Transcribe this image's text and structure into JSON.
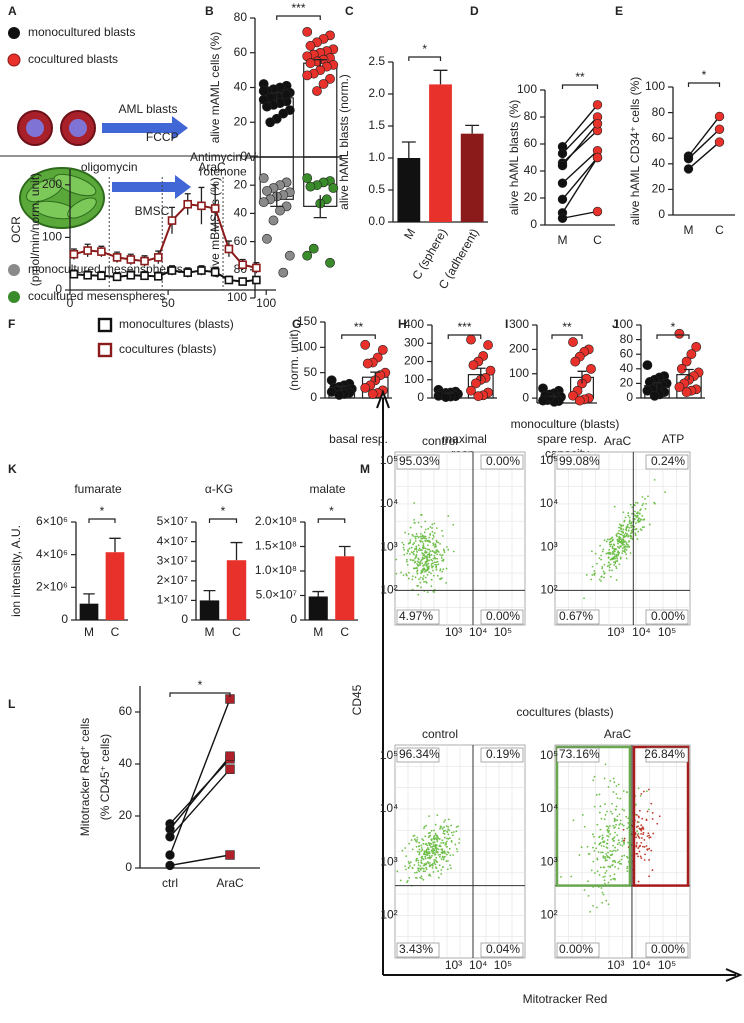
{
  "panel_labels": [
    "A",
    "B",
    "C",
    "D",
    "E",
    "F",
    "G",
    "H",
    "I",
    "J",
    "K",
    "L",
    "M"
  ],
  "panel_a": {
    "cell_label": "AML blasts",
    "treatment": "AraC",
    "stroma_label": "BMSC"
  },
  "chart_data": [
    {
      "type": "dotbar",
      "ylabel": "alive mAML cells (%)",
      "ylim": [
        0,
        80
      ],
      "yticks": [
        0,
        20,
        40,
        60,
        80
      ],
      "significance": "***",
      "series": [
        {
          "name": "monocultured blasts",
          "color": "#111111",
          "mean": 34,
          "error": 3,
          "points": [
            42,
            41,
            40,
            39,
            38,
            37,
            36,
            35,
            34,
            33,
            32,
            31,
            30,
            29,
            27,
            25,
            22,
            20,
            38,
            36
          ]
        },
        {
          "name": "cocultured blasts",
          "color": "#e8312a",
          "mean": 54,
          "error": 2,
          "points": [
            72,
            70,
            68,
            66,
            64,
            62,
            61,
            60,
            59,
            58,
            57,
            56,
            55,
            54,
            53,
            52,
            50,
            48,
            47,
            45,
            42,
            38
          ]
        }
      ]
    },
    {
      "type": "dotbar",
      "ylabel": "alive mBMSCs (%)",
      "ylim": [
        0,
        100
      ],
      "yticks": [
        20,
        40,
        60,
        80,
        100
      ],
      "inverted": true,
      "series": [
        {
          "name": "monocultured mesenspheres",
          "color": "#8a8a8a",
          "mean": 30,
          "error": 5,
          "points": [
            15,
            18,
            20,
            22,
            24,
            25,
            27,
            28,
            30,
            32,
            35,
            38,
            45,
            58,
            70,
            82
          ]
        },
        {
          "name": "cocultured mesenspheres",
          "color": "#3a8c2a",
          "mean": 35,
          "error": 8,
          "points": [
            15,
            17,
            18,
            20,
            21,
            22,
            30,
            33,
            65,
            70,
            75
          ]
        }
      ]
    },
    {
      "type": "bar",
      "ylabel": "alive hAML blasts (norm.)",
      "categories": [
        "M",
        "C (sphere)",
        "C (adherent)"
      ],
      "values": [
        1.0,
        2.15,
        1.38
      ],
      "errors": [
        0.25,
        0.22,
        0.13
      ],
      "colors": [
        "#111111",
        "#e8312a",
        "#8b1a1a"
      ],
      "ylim": [
        0,
        2.5
      ],
      "yticks": [
        {
          "value": 0,
          "label": "0.0"
        },
        0.5,
        {
          "value": 1,
          "label": "1.0"
        },
        1.5,
        {
          "value": 2,
          "label": "2.0"
        },
        2.5
      ],
      "significance": "*"
    },
    {
      "type": "paired",
      "ylabel": "alive hAML blasts (%)",
      "categories": [
        "M",
        "C"
      ],
      "colors": [
        "#111111",
        "#e8312a"
      ],
      "ylim": [
        0,
        100
      ],
      "yticks": [
        0,
        20,
        40,
        60,
        80,
        100
      ],
      "significance": "**",
      "series": [
        {
          "values": [
            58,
            89
          ]
        },
        {
          "values": [
            53,
            80
          ]
        },
        {
          "values": [
            46,
            70
          ]
        },
        {
          "values": [
            44,
            75
          ]
        },
        {
          "values": [
            31,
            55
          ]
        },
        {
          "values": [
            19,
            50
          ]
        },
        {
          "values": [
            9,
            50
          ]
        },
        {
          "values": [
            5,
            10
          ]
        }
      ]
    },
    {
      "type": "paired",
      "ylabel": "alive hAML CD34⁺ cells (%)",
      "categories": [
        "M",
        "C"
      ],
      "colors": [
        "#111111",
        "#e8312a"
      ],
      "ylim": [
        0,
        100
      ],
      "yticks": [
        0,
        20,
        40,
        60,
        80,
        100
      ],
      "significance": "*",
      "series": [
        {
          "values": [
            46,
            77
          ]
        },
        {
          "values": [
            44,
            67
          ]
        },
        {
          "values": [
            36,
            57
          ]
        }
      ]
    },
    {
      "type": "line",
      "ylabel": [
        "OCR",
        "(pmol/min/norm. unit)"
      ],
      "x": [
        2,
        9,
        16,
        24,
        31,
        38,
        45,
        52,
        60,
        67,
        74,
        81,
        88,
        95
      ],
      "xlim": [
        0,
        105
      ],
      "xticks": [
        0,
        50,
        100
      ],
      "ylim": [
        0,
        230
      ],
      "yticks": [
        0,
        100,
        200
      ],
      "events": [
        {
          "x": 20,
          "label": "oligomycin"
        },
        {
          "x": 47,
          "label": "FCCP"
        },
        {
          "x": 78,
          "label": "Antimycin A/ rotenone"
        }
      ],
      "series": [
        {
          "name": "monocultures (blasts)",
          "color": "#111111",
          "values": [
            30,
            28,
            27,
            25,
            28,
            27,
            26,
            37,
            33,
            37,
            34,
            19,
            16,
            19
          ],
          "errors": [
            8,
            8,
            8,
            8,
            8,
            8,
            8,
            9,
            9,
            9,
            9,
            7,
            6,
            6
          ]
        },
        {
          "name": "cocultures (blasts)",
          "color": "#8b1a1a",
          "values": [
            68,
            75,
            73,
            62,
            58,
            55,
            62,
            132,
            163,
            160,
            155,
            78,
            48,
            42
          ],
          "errors": [
            10,
            12,
            10,
            10,
            10,
            10,
            12,
            25,
            20,
            35,
            45,
            15,
            10,
            10
          ]
        }
      ]
    },
    {
      "type": "dotbar",
      "ylabel": "(norm. unit)",
      "xlabel": "basal resp.",
      "ylim": [
        0,
        150
      ],
      "yticks": [
        0,
        50,
        100,
        150
      ],
      "significance": "**",
      "series": [
        {
          "color": "#111111",
          "mean": 18,
          "error": 5,
          "points": [
            35,
            28,
            25,
            22,
            20,
            18,
            16,
            15,
            14,
            12,
            10,
            8,
            6
          ]
        },
        {
          "color": "#e8312a",
          "mean": 41,
          "error": 10,
          "points": [
            105,
            95,
            80,
            70,
            68,
            50,
            45,
            35,
            25,
            20,
            15,
            10,
            8
          ]
        }
      ]
    },
    {
      "type": "dotbar",
      "xlabel": "maximal resp.",
      "ylim": [
        0,
        400
      ],
      "yticks": [
        0,
        100,
        200,
        300,
        400
      ],
      "significance": "***",
      "series": [
        {
          "color": "#111111",
          "mean": 22,
          "error": 4,
          "points": [
            45,
            35,
            30,
            28,
            25,
            22,
            20,
            18,
            15,
            12,
            10,
            8,
            5
          ]
        },
        {
          "color": "#e8312a",
          "mean": 128,
          "error": 35,
          "points": [
            320,
            290,
            230,
            200,
            180,
            150,
            110,
            100,
            80,
            40,
            30,
            15,
            10
          ]
        }
      ]
    },
    {
      "type": "dotbar",
      "xlabel": "spare resp. capacity",
      "ylim": [
        -20,
        300
      ],
      "yticks": [
        0,
        100,
        200,
        300
      ],
      "significance": "**",
      "series": [
        {
          "color": "#111111",
          "mean": 5,
          "error": 3,
          "points": [
            40,
            30,
            20,
            15,
            10,
            5,
            0,
            -5,
            -8,
            -10,
            -12,
            -15,
            5
          ]
        },
        {
          "color": "#e8312a",
          "mean": 85,
          "error": 25,
          "points": [
            230,
            200,
            190,
            170,
            150,
            120,
            80,
            60,
            30,
            10,
            0,
            -5,
            -10
          ]
        }
      ]
    },
    {
      "type": "dotbar",
      "xlabel": "ATP",
      "ylim": [
        0,
        100
      ],
      "yticks": [
        0,
        20,
        40,
        60,
        80,
        100
      ],
      "significance": "*",
      "series": [
        {
          "color": "#111111",
          "mean": 17,
          "error": 4,
          "points": [
            45,
            30,
            28,
            25,
            22,
            20,
            18,
            15,
            12,
            10,
            8,
            5,
            3
          ]
        },
        {
          "color": "#e8312a",
          "mean": 32,
          "error": 7,
          "points": [
            88,
            70,
            60,
            50,
            40,
            35,
            30,
            25,
            20,
            15,
            12,
            10,
            8
          ]
        }
      ]
    },
    {
      "type": "bar",
      "title": "fumarate",
      "ylabel": "ion intensity, A.U.",
      "categories": [
        "M",
        "C"
      ],
      "values": [
        1000000,
        4150000
      ],
      "errors": [
        600000,
        850000
      ],
      "colors": [
        "#111111",
        "#e8312a"
      ],
      "ylim": [
        0,
        6000000
      ],
      "yticks": [
        0,
        {
          "value": 2000000,
          "label": "2×10⁶"
        },
        {
          "value": 4000000,
          "label": "4×10⁶"
        },
        {
          "value": 6000000,
          "label": "6×10⁶"
        }
      ],
      "significance": "*"
    },
    {
      "type": "bar",
      "title": "α-KG",
      "categories": [
        "M",
        "C"
      ],
      "values": [
        10000000,
        30500000
      ],
      "errors": [
        5000000,
        9000000
      ],
      "colors": [
        "#111111",
        "#e8312a"
      ],
      "ylim": [
        0,
        50000000
      ],
      "yticks": [
        0,
        {
          "value": 10000000,
          "label": "1×10⁷"
        },
        {
          "value": 20000000,
          "label": "2×10⁷"
        },
        {
          "value": 30000000,
          "label": "3×10⁷"
        },
        {
          "value": 40000000,
          "label": "4×10⁷"
        },
        {
          "value": 50000000,
          "label": "5×10⁷"
        }
      ],
      "significance": "*"
    },
    {
      "type": "bar",
      "title": "malate",
      "categories": [
        "M",
        "C"
      ],
      "values": [
        48000000,
        130000000
      ],
      "errors": [
        10000000,
        20000000
      ],
      "colors": [
        "#111111",
        "#e8312a"
      ],
      "ylim": [
        0,
        200000000
      ],
      "yticks": [
        0,
        {
          "value": 50000000,
          "label": "5.0×10⁷"
        },
        {
          "value": 100000000,
          "label": "1.0×10⁸"
        },
        {
          "value": 150000000,
          "label": "1.5×10⁸"
        },
        {
          "value": 200000000,
          "label": "2.0×10⁸"
        }
      ],
      "significance": "*"
    },
    {
      "type": "paired",
      "ylabel": [
        "Mitotracker Red⁺ cells",
        "(% CD45⁺ cells)"
      ],
      "categories": [
        "ctrl",
        "AraC"
      ],
      "colors": [
        "#111111",
        "#b0202a"
      ],
      "markers": [
        "circle",
        "square"
      ],
      "ylim": [
        0,
        70
      ],
      "yticks": [
        0,
        20,
        40,
        60
      ],
      "significance": "*",
      "series": [
        {
          "values": [
            17,
            42
          ]
        },
        {
          "values": [
            15,
            43
          ]
        },
        {
          "values": [
            12,
            38
          ]
        },
        {
          "values": [
            5,
            65
          ]
        },
        {
          "values": [
            1,
            5
          ]
        }
      ]
    }
  ],
  "panel_m": {
    "y_axis_label": "CD45",
    "x_axis_label": "Mitotracker Red",
    "x_tick_labels": [
      "10³",
      "10⁴",
      "10⁵"
    ],
    "y_tick_labels": [
      "10²",
      "10³",
      "10⁴",
      "10⁵"
    ],
    "groups": [
      {
        "title": "monoculture (blasts)",
        "plots": [
          {
            "title": "control",
            "quadrants": [
              "95.03%",
              "0.00%",
              "4.97%",
              "0.00%"
            ]
          },
          {
            "title": "AraC",
            "quadrants": [
              "99.08%",
              "0.24%",
              "0.67%",
              "0.00%"
            ]
          }
        ]
      },
      {
        "title": "cocultures (blasts)",
        "plots": [
          {
            "title": "control",
            "quadrants": [
              "96.34%",
              "0.19%",
              "3.43%",
              "0.04%"
            ]
          },
          {
            "title": "AraC",
            "quadrants": [
              "73.16%",
              "26.84%",
              "0.00%",
              "0.00%"
            ]
          }
        ]
      }
    ]
  }
}
